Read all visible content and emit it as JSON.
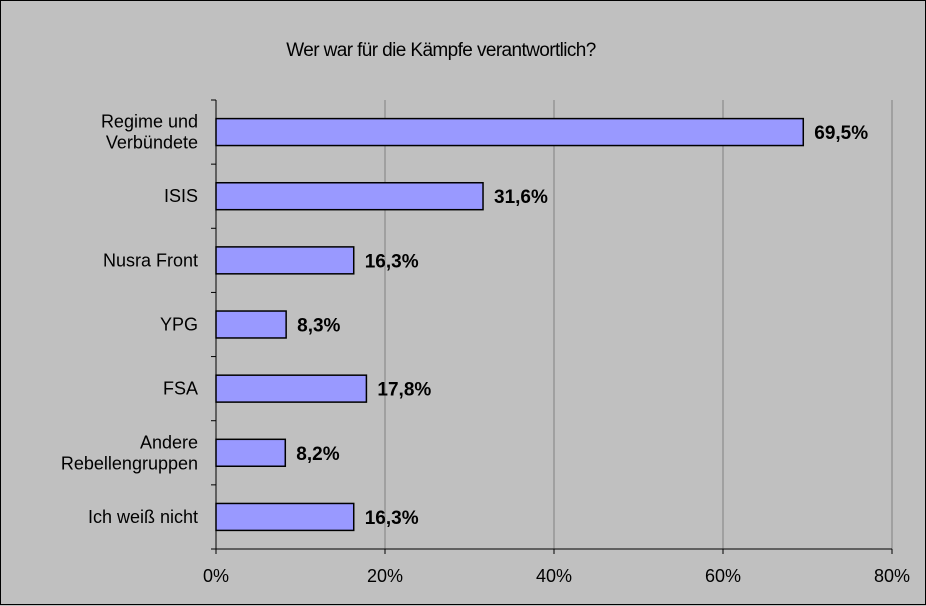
{
  "chart_data": {
    "type": "bar",
    "orientation": "horizontal",
    "title": "Wer war für die Kämpfe verantwortlich?",
    "categories": [
      [
        "Regime und",
        "Verbündete"
      ],
      [
        "ISIS"
      ],
      [
        "Nusra Front"
      ],
      [
        "YPG"
      ],
      [
        "FSA"
      ],
      [
        "Andere",
        "Rebellengruppen"
      ],
      [
        "Ich weiß nicht"
      ]
    ],
    "values": [
      69.5,
      31.6,
      16.3,
      8.3,
      17.8,
      8.2,
      16.3
    ],
    "data_labels": [
      "69,5%",
      "31,6%",
      "16,3%",
      "8,3%",
      "17,8%",
      "8,2%",
      "16,3%"
    ],
    "xlim": [
      0,
      80
    ],
    "xticks": [
      "0%",
      "20%",
      "40%",
      "60%",
      "80%"
    ],
    "xlabel": "",
    "ylabel": "",
    "grid": true,
    "legend": "none",
    "bar_color": "#9999ff",
    "bar_border_color": "#000000",
    "plot_background": "#c0c0c0",
    "grid_color": "#808080"
  }
}
